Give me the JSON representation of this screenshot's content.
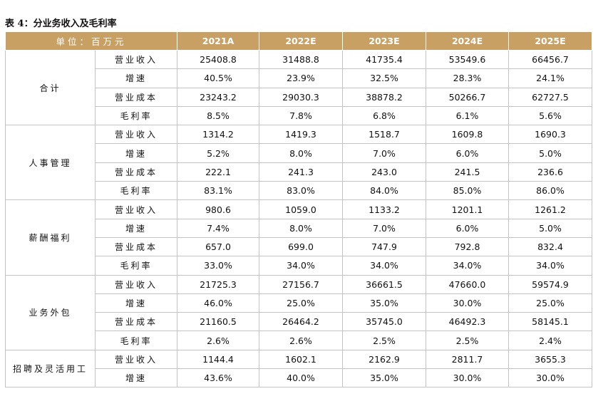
{
  "caption": "表 4：分业务收入及毛利率",
  "table": {
    "header": [
      "单位：百万元",
      "2021A",
      "2022E",
      "2023E",
      "2024E",
      "2025E"
    ],
    "groups": [
      {
        "name": "合计",
        "rows": [
          [
            "营业收入",
            "25408.8",
            "31488.8",
            "41735.4",
            "53549.6",
            "66456.7"
          ],
          [
            "增速",
            "40.5%",
            "23.9%",
            "32.5%",
            "28.3%",
            "24.1%"
          ],
          [
            "营业成本",
            "23243.2",
            "29030.3",
            "38878.2",
            "50266.7",
            "62727.5"
          ],
          [
            "毛利率",
            "8.5%",
            "7.8%",
            "6.8%",
            "6.1%",
            "5.6%"
          ]
        ]
      },
      {
        "name": "人事管理",
        "rows": [
          [
            "营业收入",
            "1314.2",
            "1419.3",
            "1518.7",
            "1609.8",
            "1690.3"
          ],
          [
            "增速",
            "5.2%",
            "8.0%",
            "7.0%",
            "6.0%",
            "5.0%"
          ],
          [
            "营业成本",
            "222.1",
            "241.3",
            "243.0",
            "241.5",
            "236.6"
          ],
          [
            "毛利率",
            "83.1%",
            "83.0%",
            "84.0%",
            "85.0%",
            "86.0%"
          ]
        ]
      },
      {
        "name": "薪酬福利",
        "rows": [
          [
            "营业收入",
            "980.6",
            "1059.0",
            "1133.2",
            "1201.1",
            "1261.2"
          ],
          [
            "增速",
            "7.4%",
            "8.0%",
            "7.0%",
            "6.0%",
            "5.0%"
          ],
          [
            "营业成本",
            "657.0",
            "699.0",
            "747.9",
            "792.8",
            "832.4"
          ],
          [
            "毛利率",
            "33.0%",
            "34.0%",
            "34.0%",
            "34.0%",
            "34.0%"
          ]
        ]
      },
      {
        "name": "业务外包",
        "rows": [
          [
            "营业收入",
            "21725.3",
            "27156.7",
            "36661.5",
            "47660.0",
            "59574.9"
          ],
          [
            "增速",
            "46.0%",
            "25.0%",
            "35.0%",
            "30.0%",
            "25.0%"
          ],
          [
            "营业成本",
            "21160.5",
            "26464.2",
            "35745.0",
            "46492.3",
            "58145.1"
          ],
          [
            "毛利率",
            "2.6%",
            "2.6%",
            "2.5%",
            "2.5%",
            "2.4%"
          ]
        ]
      },
      {
        "name": "招聘及灵活用工",
        "rows": [
          [
            "营业收入",
            "1144.4",
            "1602.1",
            "2162.9",
            "2811.7",
            "3655.3"
          ],
          [
            "增速",
            "43.6%",
            "40.0%",
            "35.0%",
            "30.0%",
            "30.0%"
          ]
        ]
      }
    ]
  }
}
